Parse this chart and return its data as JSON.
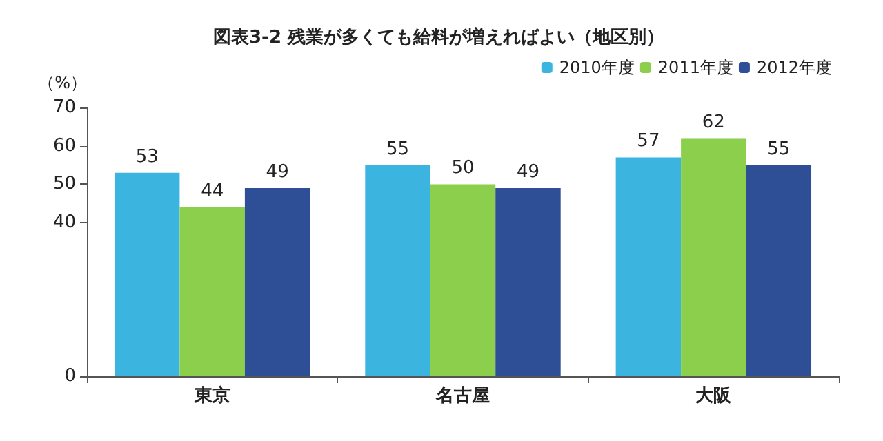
{
  "chart_data": {
    "type": "bar",
    "title": "図表3-2 残業が多くても給料が増えればよい（地区別）",
    "ylabel": "（%）",
    "categories": [
      "東京",
      "名古屋",
      "大阪"
    ],
    "series": [
      {
        "name": "2010年度",
        "color": "#3cb4e0",
        "values": [
          53,
          55,
          57
        ]
      },
      {
        "name": "2011年度",
        "color": "#8ccf4c",
        "values": [
          44,
          50,
          62
        ]
      },
      {
        "name": "2012年度",
        "color": "#2e4f95",
        "values": [
          49,
          49,
          55
        ]
      }
    ],
    "ylim": [
      0,
      70
    ],
    "yticks": [
      0,
      40,
      50,
      60,
      70
    ],
    "grid": false,
    "legend": "top right",
    "data_labels": true
  }
}
